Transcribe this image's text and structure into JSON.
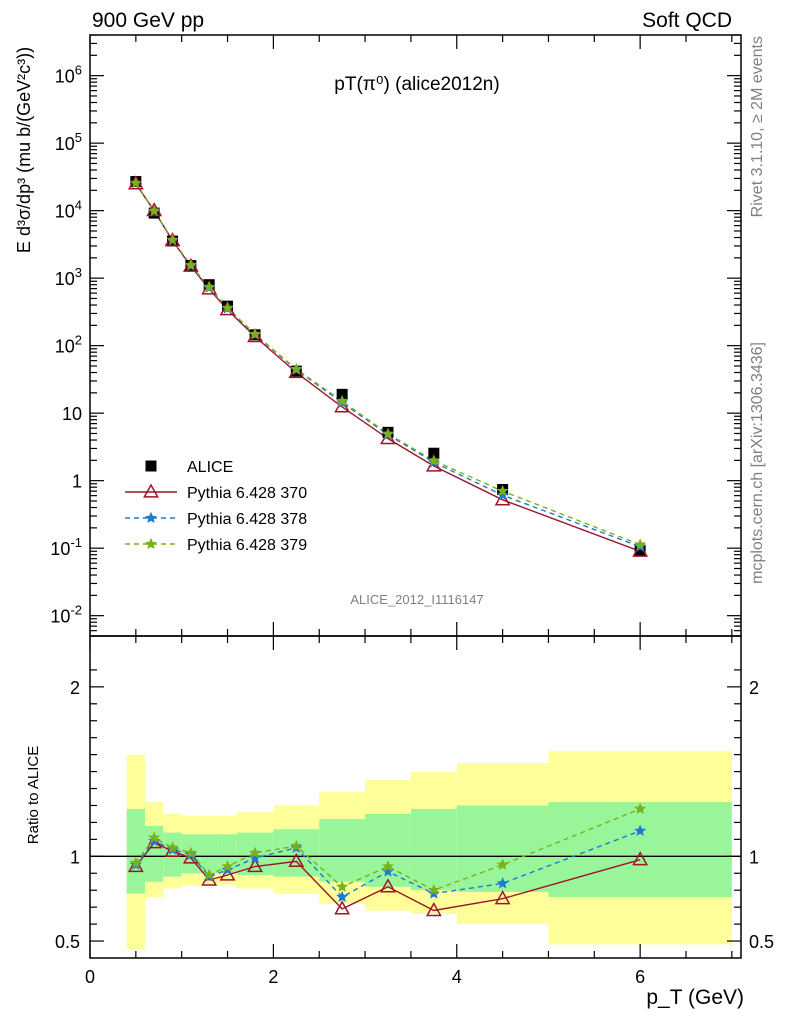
{
  "header": {
    "left": "900 GeV pp",
    "right": "Soft QCD"
  },
  "side_labels": {
    "rivet": "Rivet 3.1.10, ≥ 2M events",
    "mcplots": "mcplots.cern.ch [arXiv:1306.3436]"
  },
  "chart_data": [
    {
      "type": "scatter",
      "title": "pT(π⁰) (alice2012n)",
      "analysis_label": "ALICE_2012_I1116147",
      "ylabel": "E d³σ/dp³ (mu b/(GeV²c³))",
      "xlabel": "p_T (GeV)",
      "xlim": [
        0,
        7.1
      ],
      "ylim": [
        0.005,
        4000000
      ],
      "y_scale": "log",
      "y_tick_labels": [
        "10^-2",
        "10^-1",
        "1",
        "10",
        "10^2",
        "10^3",
        "10^4",
        "10^5",
        "10^6"
      ],
      "legend_position": "bottom-left",
      "x": [
        0.5,
        0.7,
        0.9,
        1.1,
        1.3,
        1.5,
        1.8,
        2.25,
        2.75,
        3.25,
        3.75,
        4.5,
        6.0
      ],
      "series": [
        {
          "name": "ALICE",
          "color": "#000000",
          "marker": "filled-square",
          "values": [
            27000,
            9200,
            3550,
            1540,
            800,
            385,
            145,
            42,
            19.0,
            5.2,
            2.55,
            0.74,
            0.093
          ]
        },
        {
          "name": "Pythia 6.428 370",
          "color": "#a0142a",
          "marker": "open-triangle",
          "line": "solid",
          "values": [
            25000,
            10000,
            3600,
            1500,
            690,
            340,
            136,
            40,
            12.4,
            4.2,
            1.65,
            0.52,
            0.09
          ]
        },
        {
          "name": "Pythia 6.428 378",
          "color": "#1a7ad6",
          "marker": "star",
          "line": "dashed",
          "values": [
            25500,
            9800,
            3630,
            1530,
            720,
            355,
            145,
            44,
            14.3,
            4.8,
            1.87,
            0.61,
            0.105
          ]
        },
        {
          "name": "Pythia 6.428 379",
          "color": "#7ab01a",
          "marker": "star",
          "line": "dashed",
          "values": [
            25700,
            9950,
            3670,
            1560,
            740,
            363,
            148,
            45,
            15.1,
            4.95,
            1.98,
            0.7,
            0.113
          ]
        }
      ]
    },
    {
      "type": "line",
      "ylabel": "Ratio to ALICE",
      "xlabel": "p_T (GeV)",
      "xlim": [
        0,
        7.1
      ],
      "ylim": [
        0.4,
        2.3
      ],
      "x_tick_labels": [
        "0",
        "2",
        "4",
        "6"
      ],
      "y_tick_labels": [
        "0.5",
        "1",
        "2"
      ],
      "reference_line": 1,
      "bands": {
        "edges": [
          0.4,
          0.6,
          0.8,
          1.0,
          1.2,
          1.4,
          1.6,
          2.0,
          2.5,
          3.0,
          3.5,
          4.0,
          5.0,
          7.0
        ],
        "inner_color": "#99f599",
        "outer_color": "#ffff99",
        "inner_low": [
          0.78,
          0.85,
          0.88,
          0.9,
          0.9,
          0.9,
          0.89,
          0.88,
          0.85,
          0.82,
          0.8,
          0.79,
          0.76
        ],
        "inner_high": [
          1.28,
          1.18,
          1.14,
          1.13,
          1.13,
          1.13,
          1.14,
          1.16,
          1.22,
          1.25,
          1.28,
          1.3,
          1.32
        ],
        "outer_low": [
          0.45,
          0.76,
          0.81,
          0.83,
          0.83,
          0.83,
          0.81,
          0.78,
          0.72,
          0.68,
          0.66,
          0.6,
          0.48
        ],
        "outer_high": [
          1.6,
          1.32,
          1.25,
          1.24,
          1.24,
          1.24,
          1.26,
          1.3,
          1.38,
          1.45,
          1.5,
          1.55,
          1.62
        ]
      },
      "x": [
        0.5,
        0.7,
        0.9,
        1.1,
        1.3,
        1.5,
        1.8,
        2.25,
        2.75,
        3.25,
        3.75,
        4.5,
        6.0
      ],
      "series": [
        {
          "name": "Pythia 6.428 370",
          "color": "#a0142a",
          "values": [
            0.94,
            1.08,
            1.03,
            0.99,
            0.86,
            0.89,
            0.94,
            0.97,
            0.69,
            0.82,
            0.68,
            0.75,
            0.98
          ]
        },
        {
          "name": "Pythia 6.428 378",
          "color": "#1a7ad6",
          "values": [
            0.95,
            1.09,
            1.04,
            1.01,
            0.88,
            0.92,
            0.99,
            1.05,
            0.76,
            0.91,
            0.78,
            0.84,
            1.15
          ]
        },
        {
          "name": "Pythia 6.428 379",
          "color": "#7ab01a",
          "values": [
            0.96,
            1.11,
            1.05,
            1.02,
            0.89,
            0.94,
            1.02,
            1.06,
            0.82,
            0.94,
            0.8,
            0.95,
            1.28
          ]
        }
      ]
    }
  ]
}
